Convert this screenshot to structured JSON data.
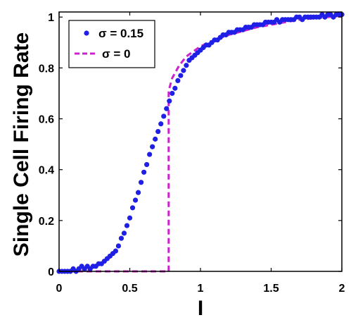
{
  "chart_data": {
    "type": "scatter",
    "xlabel": "I",
    "ylabel": "Single Cell Firing Rate",
    "xlim": [
      0,
      2
    ],
    "ylim": [
      0,
      1.02
    ],
    "xticks": [
      "0",
      "0.5",
      "1",
      "1.5",
      "2"
    ],
    "yticks": [
      "0",
      "0.2",
      "0.4",
      "0.6",
      "0.8",
      "1"
    ],
    "legend_position": "top-left",
    "series": [
      {
        "name": "σ = 0.15",
        "style": "dots",
        "color": "#1f1fe6",
        "x": [
          0.0,
          0.02,
          0.04,
          0.06,
          0.08,
          0.1,
          0.12,
          0.14,
          0.16,
          0.18,
          0.2,
          0.22,
          0.24,
          0.26,
          0.28,
          0.3,
          0.32,
          0.34,
          0.36,
          0.38,
          0.4,
          0.42,
          0.44,
          0.46,
          0.48,
          0.5,
          0.52,
          0.54,
          0.56,
          0.58,
          0.6,
          0.62,
          0.64,
          0.66,
          0.68,
          0.7,
          0.72,
          0.74,
          0.76,
          0.78,
          0.8,
          0.82,
          0.84,
          0.86,
          0.88,
          0.9,
          0.92,
          0.94,
          0.96,
          0.98,
          1.0,
          1.02,
          1.04,
          1.06,
          1.08,
          1.1,
          1.12,
          1.14,
          1.16,
          1.18,
          1.2,
          1.22,
          1.24,
          1.26,
          1.28,
          1.3,
          1.32,
          1.34,
          1.36,
          1.38,
          1.4,
          1.42,
          1.44,
          1.46,
          1.48,
          1.5,
          1.52,
          1.54,
          1.56,
          1.58,
          1.6,
          1.62,
          1.64,
          1.66,
          1.68,
          1.7,
          1.72,
          1.74,
          1.76,
          1.78,
          1.8,
          1.82,
          1.84,
          1.86,
          1.88,
          1.9,
          1.92,
          1.94,
          1.96,
          1.98,
          2.0
        ],
        "y": [
          0.0,
          0.0,
          0.0,
          0.0,
          0.0,
          0.01,
          0.0,
          0.01,
          0.02,
          0.01,
          0.02,
          0.01,
          0.02,
          0.02,
          0.03,
          0.03,
          0.04,
          0.05,
          0.06,
          0.07,
          0.08,
          0.1,
          0.13,
          0.15,
          0.18,
          0.21,
          0.25,
          0.28,
          0.31,
          0.35,
          0.39,
          0.42,
          0.46,
          0.49,
          0.52,
          0.55,
          0.58,
          0.61,
          0.64,
          0.67,
          0.7,
          0.72,
          0.75,
          0.77,
          0.79,
          0.81,
          0.83,
          0.84,
          0.85,
          0.86,
          0.87,
          0.88,
          0.89,
          0.89,
          0.9,
          0.91,
          0.91,
          0.92,
          0.93,
          0.93,
          0.94,
          0.94,
          0.94,
          0.95,
          0.95,
          0.95,
          0.96,
          0.96,
          0.96,
          0.97,
          0.97,
          0.97,
          0.97,
          0.98,
          0.98,
          0.98,
          0.98,
          0.99,
          0.98,
          0.99,
          0.99,
          0.99,
          0.99,
          0.99,
          1.0,
          1.0,
          0.99,
          1.0,
          1.0,
          1.0,
          1.0,
          1.0,
          1.0,
          1.01,
          1.0,
          1.01,
          1.01,
          1.0,
          1.01,
          1.01,
          1.01
        ]
      },
      {
        "name": "σ = 0",
        "style": "dashed",
        "color": "#cc22cc",
        "x": [
          0.0,
          0.1,
          0.2,
          0.3,
          0.4,
          0.5,
          0.6,
          0.7,
          0.775,
          0.775,
          0.8,
          0.85,
          0.9,
          0.95,
          1.0,
          1.1,
          1.2,
          1.3,
          1.4,
          1.5,
          1.6,
          1.7,
          1.8,
          1.9,
          2.0
        ],
        "y": [
          0.0,
          0.0,
          0.0,
          0.0,
          0.0,
          0.0,
          0.0,
          0.0,
          0.0,
          0.71,
          0.76,
          0.81,
          0.845,
          0.865,
          0.885,
          0.91,
          0.93,
          0.945,
          0.96,
          0.97,
          0.98,
          0.99,
          0.995,
          1.0,
          1.005
        ]
      }
    ]
  }
}
